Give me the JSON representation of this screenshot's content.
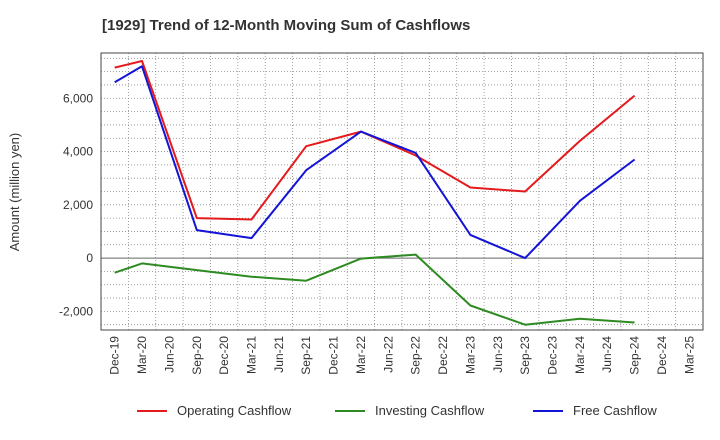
{
  "chart_data": {
    "type": "line",
    "title": "[1929]  Trend of 12-Month Moving Sum of Cashflows",
    "xlabel": "",
    "ylabel": "Amount (million yen)",
    "ylim": [
      -2700,
      7700
    ],
    "yticks": [
      -2000,
      0,
      2000,
      4000,
      6000
    ],
    "ytick_labels": [
      "-2,000",
      "0",
      "2,000",
      "4,000",
      "6,000"
    ],
    "categories": [
      "Dec-19",
      "Mar-20",
      "Jun-20",
      "Sep-20",
      "Dec-20",
      "Mar-21",
      "Jun-21",
      "Sep-21",
      "Dec-21",
      "Mar-22",
      "Jun-22",
      "Sep-22",
      "Dec-22",
      "Mar-23",
      "Jun-23",
      "Sep-23",
      "Dec-23",
      "Mar-24",
      "Jun-24",
      "Sep-24",
      "Dec-24",
      "Mar-25"
    ],
    "grid": true,
    "legend_position": "bottom",
    "series": [
      {
        "name": "Operating Cashflow",
        "color": "#e41a1c",
        "values": [
          7150,
          7400,
          null,
          1500,
          null,
          1450,
          null,
          4200,
          null,
          4750,
          null,
          3850,
          null,
          2650,
          null,
          2500,
          null,
          4400,
          null,
          6100,
          null,
          null
        ]
      },
      {
        "name": "Investing Cashflow",
        "color": "#2e8b22",
        "values": [
          -550,
          -200,
          null,
          -450,
          null,
          -700,
          null,
          -850,
          null,
          -20,
          null,
          130,
          null,
          -1780,
          null,
          -2500,
          null,
          -2280,
          null,
          -2420,
          null,
          null
        ]
      },
      {
        "name": "Free Cashflow",
        "color": "#1414d6",
        "values": [
          6600,
          7200,
          null,
          1050,
          null,
          750,
          null,
          3300,
          null,
          4750,
          null,
          3950,
          null,
          870,
          null,
          0,
          null,
          2150,
          null,
          3700,
          null,
          null
        ]
      }
    ]
  }
}
